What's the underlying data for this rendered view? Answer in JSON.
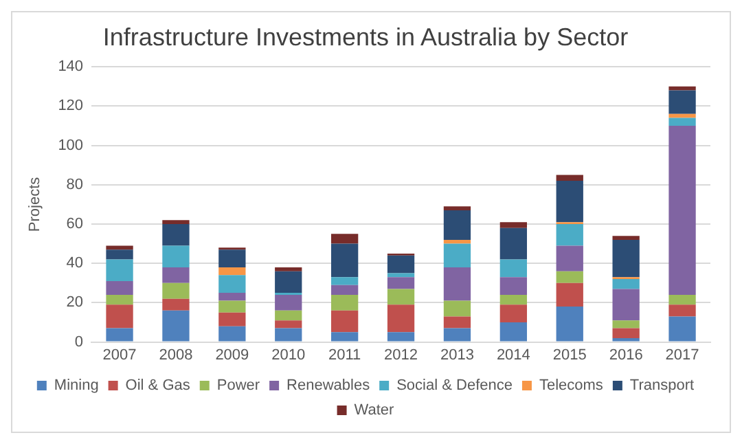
{
  "chart_data": {
    "type": "bar",
    "stacked": true,
    "title": "Infrastructure Investments in Australia by Sector",
    "ylabel": "Projects",
    "categories": [
      "2007",
      "2008",
      "2009",
      "2010",
      "2011",
      "2012",
      "2013",
      "2014",
      "2015",
      "2016",
      "2017"
    ],
    "series": [
      {
        "name": "Mining",
        "color": "#4f81bd",
        "values": [
          7,
          16,
          8,
          7,
          5,
          5,
          7,
          10,
          18,
          2,
          13
        ]
      },
      {
        "name": "Oil & Gas",
        "color": "#c0504d",
        "values": [
          12,
          6,
          7,
          4,
          11,
          14,
          6,
          9,
          12,
          5,
          6
        ]
      },
      {
        "name": "Power",
        "color": "#9bbb59",
        "values": [
          5,
          8,
          6,
          5,
          8,
          8,
          8,
          5,
          6,
          4,
          5
        ]
      },
      {
        "name": "Renewables",
        "color": "#8064a2",
        "values": [
          7,
          8,
          4,
          8,
          5,
          6,
          17,
          9,
          13,
          16,
          86
        ]
      },
      {
        "name": "Social & Defence",
        "color": "#4bacc6",
        "values": [
          11,
          11,
          9,
          1,
          4,
          2,
          12,
          9,
          11,
          5,
          4
        ]
      },
      {
        "name": "Telecoms",
        "color": "#f79646",
        "values": [
          0,
          0,
          4,
          0,
          0,
          0,
          2,
          0,
          1,
          1,
          2
        ]
      },
      {
        "name": "Transport",
        "color": "#2c4d75",
        "values": [
          5,
          11,
          9,
          11,
          17,
          9,
          15,
          16,
          21,
          19,
          12
        ]
      },
      {
        "name": "Water",
        "color": "#772c2a",
        "values": [
          2,
          2,
          1,
          2,
          5,
          1,
          2,
          3,
          3,
          2,
          2
        ]
      }
    ],
    "ylim": [
      0,
      140
    ],
    "yticks": [
      0,
      20,
      40,
      60,
      80,
      100,
      120,
      140
    ],
    "grid": "y",
    "legend": "bottom"
  }
}
